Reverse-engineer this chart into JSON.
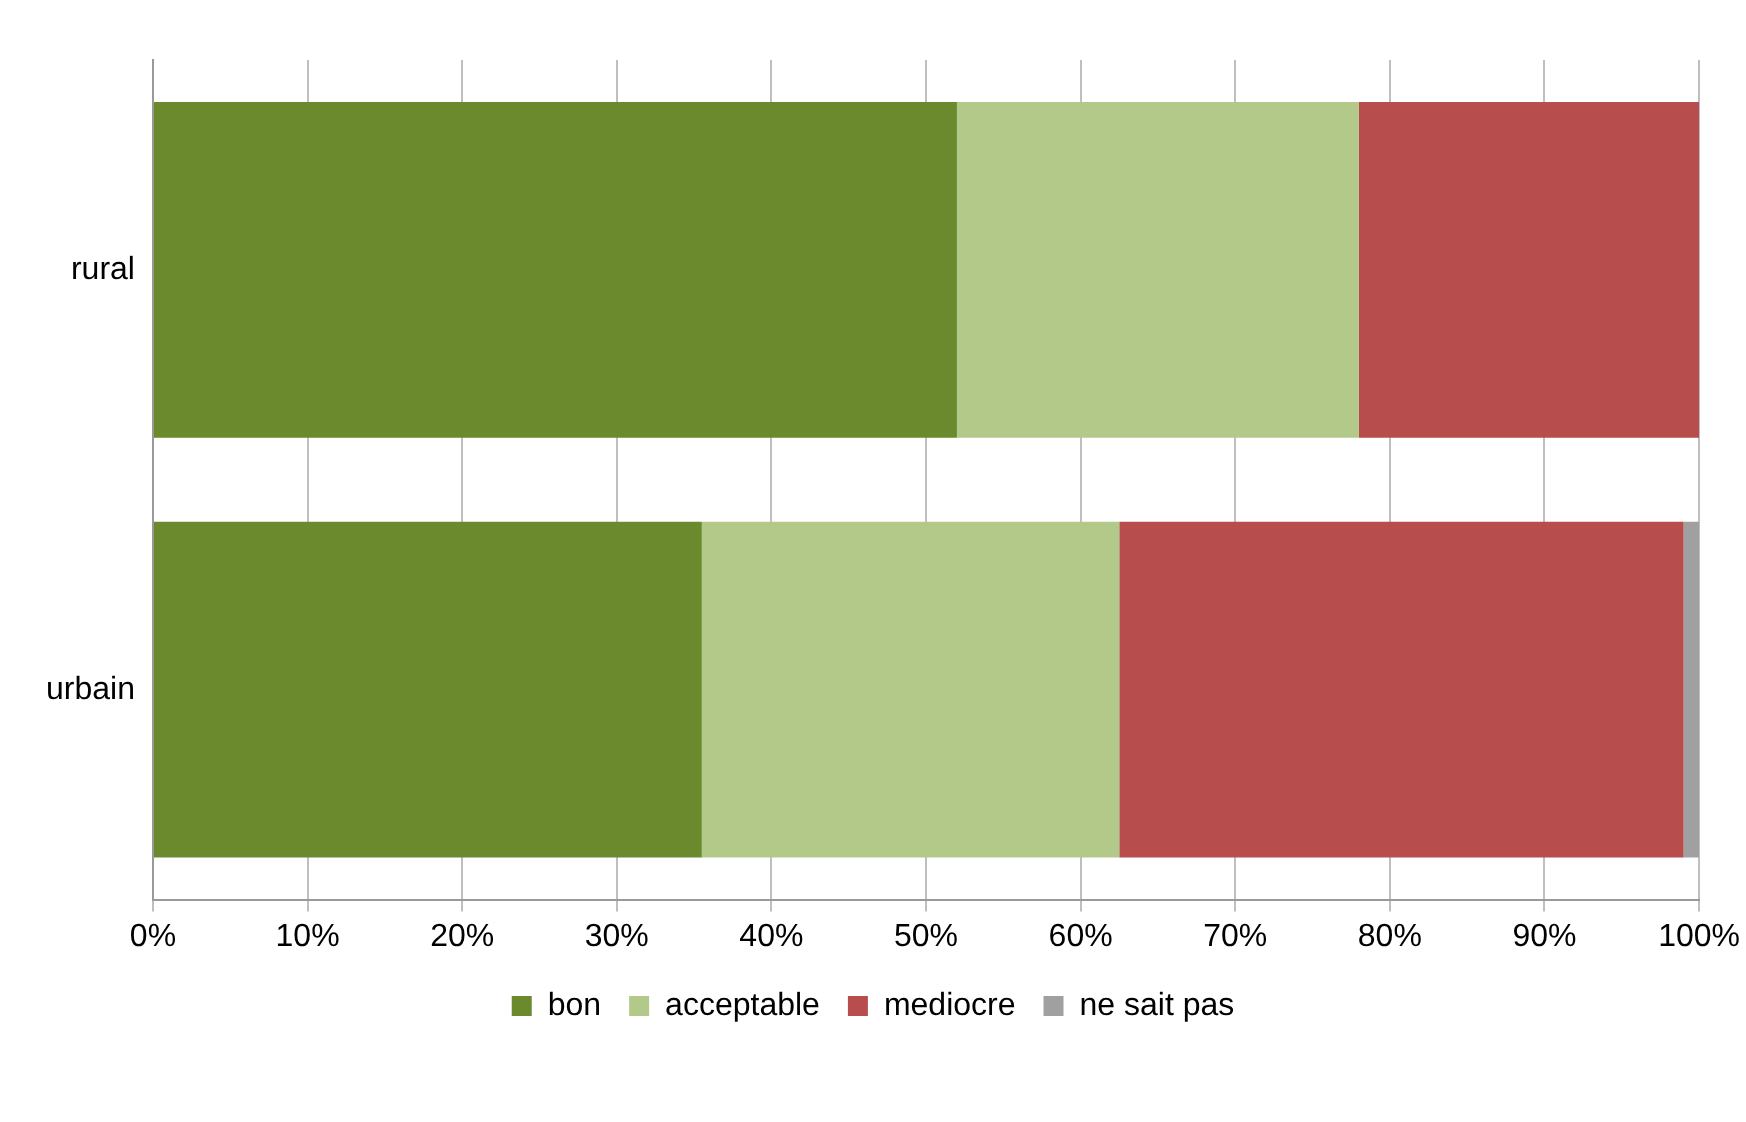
{
  "chart_data": {
    "type": "bar",
    "orientation": "horizontal",
    "stacked": true,
    "categories": [
      "rural",
      "urbain"
    ],
    "series": [
      {
        "name": "bon",
        "color": "#6b8a2e",
        "values": [
          52,
          35.5
        ]
      },
      {
        "name": "acceptable",
        "color": "#b3c98a",
        "values": [
          26,
          27
        ]
      },
      {
        "name": "mediocre",
        "color": "#b84d4d",
        "values": [
          22,
          36.5
        ]
      },
      {
        "name": "ne sait pas",
        "color": "#a0a0a0",
        "values": [
          0,
          1
        ]
      }
    ],
    "xlim": [
      0,
      100
    ],
    "xticks": [
      {
        "value": 0,
        "label": "0%"
      },
      {
        "value": 10,
        "label": "10%"
      },
      {
        "value": 20,
        "label": "20%"
      },
      {
        "value": 30,
        "label": "30%"
      },
      {
        "value": 40,
        "label": "40%"
      },
      {
        "value": 50,
        "label": "50%"
      },
      {
        "value": 60,
        "label": "60%"
      },
      {
        "value": 70,
        "label": "70%"
      },
      {
        "value": 80,
        "label": "80%"
      },
      {
        "value": 90,
        "label": "90%"
      },
      {
        "value": 100,
        "label": "100%"
      }
    ],
    "grid": "x",
    "legend": "bottom"
  }
}
